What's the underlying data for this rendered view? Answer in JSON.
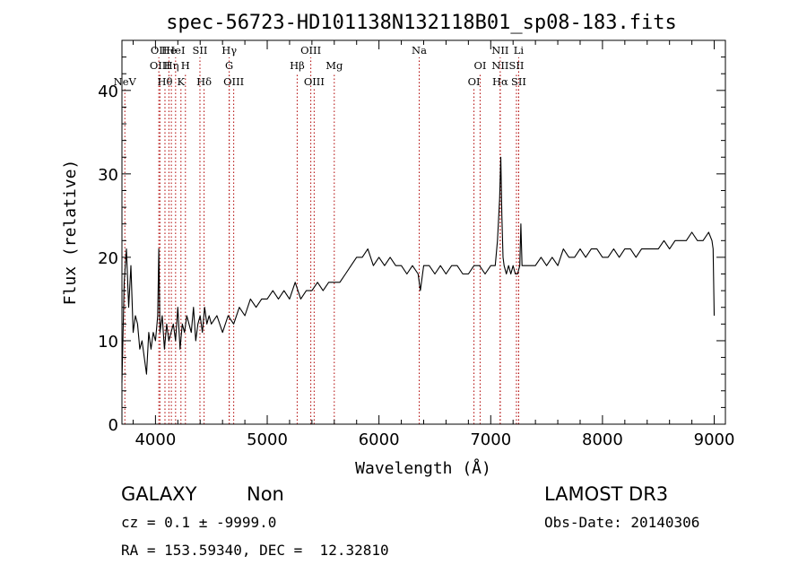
{
  "chart_data": {
    "type": "line",
    "title": "spec-56723-HD101138N132118B01_sp08-183.fits",
    "xlabel": "Wavelength (Å)",
    "ylabel": "Flux (relative)",
    "xlim": [
      3700,
      9100
    ],
    "ylim": [
      0,
      46
    ],
    "xticks": [
      4000,
      5000,
      6000,
      7000,
      8000,
      9000
    ],
    "yticks": [
      0,
      10,
      20,
      30,
      40
    ],
    "series": [
      {
        "x": [
          3700,
          3720,
          3740,
          3760,
          3780,
          3800,
          3820,
          3840,
          3860,
          3880,
          3900,
          3920,
          3940,
          3960,
          3980,
          4000,
          4020,
          4030,
          4040,
          4060,
          4080,
          4100,
          4120,
          4140,
          4160,
          4180,
          4200,
          4220,
          4240,
          4260,
          4280,
          4300,
          4320,
          4340,
          4360,
          4380,
          4400,
          4420,
          4440,
          4460,
          4480,
          4500,
          4550,
          4600,
          4650,
          4700,
          4750,
          4800,
          4850,
          4900,
          4950,
          5000,
          5050,
          5100,
          5150,
          5200,
          5250,
          5300,
          5350,
          5400,
          5450,
          5500,
          5550,
          5600,
          5650,
          5700,
          5750,
          5800,
          5850,
          5900,
          5950,
          6000,
          6050,
          6100,
          6150,
          6200,
          6250,
          6300,
          6350,
          6370,
          6400,
          6450,
          6500,
          6550,
          6600,
          6650,
          6700,
          6750,
          6800,
          6850,
          6900,
          6950,
          7000,
          7040,
          7060,
          7080,
          7090,
          7100,
          7110,
          7120,
          7140,
          7160,
          7180,
          7200,
          7220,
          7240,
          7260,
          7270,
          7280,
          7300,
          7350,
          7400,
          7450,
          7500,
          7550,
          7600,
          7650,
          7700,
          7750,
          7800,
          7850,
          7900,
          7950,
          8000,
          8050,
          8100,
          8150,
          8200,
          8250,
          8300,
          8350,
          8400,
          8450,
          8500,
          8550,
          8600,
          8650,
          8700,
          8750,
          8800,
          8850,
          8900,
          8950,
          8980,
          8990,
          9000
        ],
        "y": [
          5,
          17,
          21,
          14,
          19,
          11,
          13,
          12,
          9,
          10,
          8,
          6,
          11,
          9,
          11,
          10,
          13,
          21,
          11,
          13,
          9,
          12,
          10,
          11,
          12,
          10,
          14,
          9,
          12,
          11,
          13,
          12,
          11,
          14,
          10,
          12,
          13,
          11,
          14,
          12,
          13,
          12,
          13,
          11,
          13,
          12,
          14,
          13,
          15,
          14,
          15,
          15,
          16,
          15,
          16,
          15,
          17,
          15,
          16,
          16,
          17,
          16,
          17,
          17,
          17,
          18,
          19,
          20,
          20,
          21,
          19,
          20,
          19,
          20,
          19,
          19,
          18,
          19,
          18,
          16,
          19,
          19,
          18,
          19,
          18,
          19,
          19,
          18,
          18,
          19,
          19,
          18,
          19,
          19,
          22,
          27,
          32,
          25,
          20,
          19,
          18,
          19,
          18,
          19,
          18,
          18,
          19,
          24,
          19,
          19,
          19,
          19,
          20,
          19,
          20,
          19,
          21,
          20,
          20,
          21,
          20,
          21,
          21,
          20,
          20,
          21,
          20,
          21,
          21,
          20,
          21,
          21,
          21,
          21,
          22,
          21,
          22,
          22,
          22,
          23,
          22,
          22,
          23,
          22,
          21,
          13
        ]
      }
    ],
    "lines": [
      {
        "label": "NeV",
        "x": 3726,
        "row": 3
      },
      {
        "label": "OII",
        "x": 4030,
        "row": 1
      },
      {
        "label": "OIII",
        "x": 4040,
        "row": 2
      },
      {
        "label": "Hθ",
        "x": 4085,
        "row": 3
      },
      {
        "label": "He",
        "x": 4120,
        "row": 1
      },
      {
        "label": "Hη",
        "x": 4142,
        "row": 2
      },
      {
        "label": "HeI",
        "x": 4180,
        "row": 1
      },
      {
        "label": "K",
        "x": 4228,
        "row": 3
      },
      {
        "label": "H",
        "x": 4268,
        "row": 2
      },
      {
        "label": "SII",
        "x": 4398,
        "row": 1
      },
      {
        "label": "Hδ",
        "x": 4435,
        "row": 3
      },
      {
        "label": "Hγ",
        "x": 4660,
        "row": 1
      },
      {
        "label": "G",
        "x": 4660,
        "row": 2
      },
      {
        "label": "OIII",
        "x": 4700,
        "row": 3
      },
      {
        "label": "Hβ",
        "x": 5268,
        "row": 2
      },
      {
        "label": "OIII",
        "x": 5390,
        "row": 1
      },
      {
        "label": "OIII",
        "x": 5420,
        "row": 3
      },
      {
        "label": "Mg",
        "x": 5600,
        "row": 2
      },
      {
        "label": "Na",
        "x": 6360,
        "row": 1
      },
      {
        "label": "OI",
        "x": 6850,
        "row": 3
      },
      {
        "label": "OI",
        "x": 6905,
        "row": 2
      },
      {
        "label": "NII",
        "x": 7085,
        "row": 1
      },
      {
        "label": "NII",
        "x": 7085,
        "row": 2
      },
      {
        "label": "Hα",
        "x": 7085,
        "row": 3
      },
      {
        "label": "Li",
        "x": 7250,
        "row": 1
      },
      {
        "label": "SII",
        "x": 7230,
        "row": 2
      },
      {
        "label": "SII",
        "x": 7250,
        "row": 3
      }
    ],
    "grid": false
  },
  "footer": {
    "class_label": "GALAXY",
    "subclass_label": "Non",
    "cz_line": "cz = 0.1 ± -9999.0",
    "radec_line": "RA = 153.59340, DEC =  12.32810",
    "survey": "LAMOST DR3",
    "obs_date": "Obs-Date: 20140306"
  },
  "colors": {
    "spectrum": "#000000",
    "line_markers": "#b00000",
    "axes": "#000000"
  }
}
